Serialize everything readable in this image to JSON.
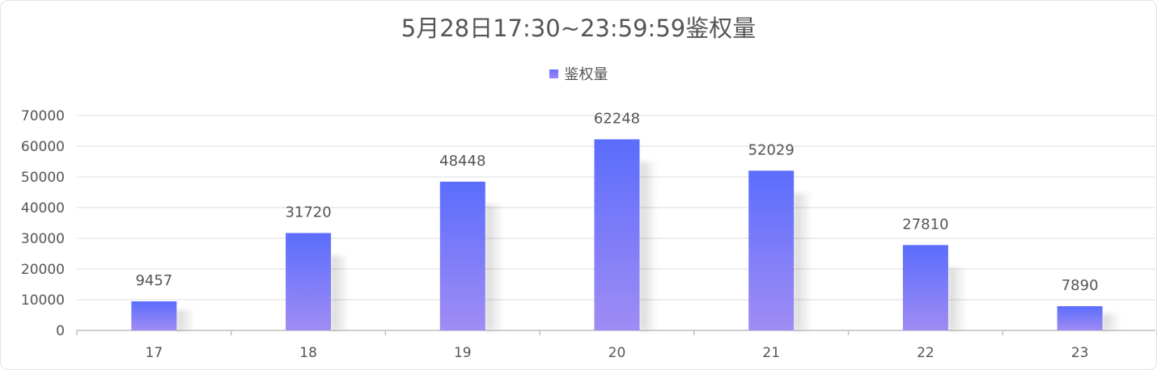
{
  "title": "5月28日17:30~23:59:59鉴权量",
  "legend": {
    "label": "鉴权量"
  },
  "colors": {
    "bar_top": "#5b6dfd",
    "bar_bottom": "#a08cf4",
    "grid": "#dcdcdc",
    "axis": "#bfbfbf",
    "text": "#555555"
  },
  "chart_data": {
    "type": "bar",
    "title": "5月28日17:30~23:59:59鉴权量",
    "categories": [
      "17",
      "18",
      "19",
      "20",
      "21",
      "22",
      "23"
    ],
    "series": [
      {
        "name": "鉴权量",
        "values": [
          9457,
          31720,
          48448,
          62248,
          52029,
          27810,
          7890
        ]
      }
    ],
    "ylim": [
      0,
      70000
    ],
    "yticks": [
      "0",
      "10000",
      "20000",
      "30000",
      "40000",
      "50000",
      "60000",
      "70000"
    ],
    "data_labels": [
      "9457",
      "31720",
      "48448",
      "62248",
      "52029",
      "27810",
      "7890"
    ],
    "grid": true,
    "legend_position": "top-center"
  }
}
